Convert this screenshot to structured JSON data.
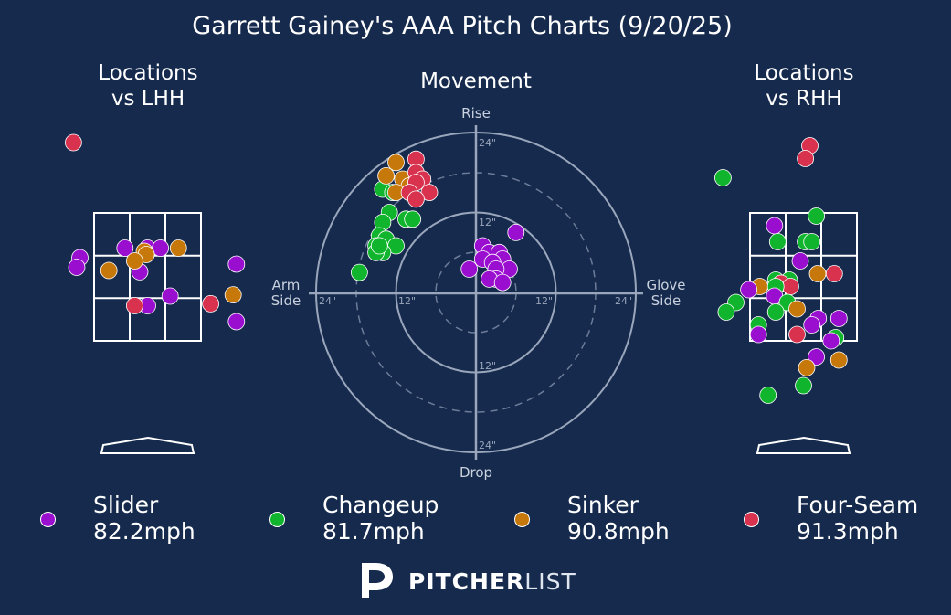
{
  "chart_data": {
    "type": "scatter",
    "title": "Garrett Gainey's AAA Pitch Charts (9/20/25)",
    "pitch_types": [
      {
        "key": "slider",
        "name": "Slider",
        "velocity": "82.2mph",
        "color": "#9a0fcf"
      },
      {
        "key": "changeup",
        "name": "Changeup",
        "velocity": "81.7mph",
        "color": "#10b52d"
      },
      {
        "key": "sinker",
        "name": "Sinker",
        "velocity": "90.8mph",
        "color": "#c7780a"
      },
      {
        "key": "fourseam",
        "name": "Four-Seam",
        "velocity": "91.3mph",
        "color": "#d8324f"
      }
    ],
    "panels": {
      "lhh": {
        "title_line1": "Locations",
        "title_line2": "vs LHH",
        "points": [
          {
            "x": -1.15,
            "y": 4.6,
            "pitch": "fourseam"
          },
          {
            "x": -0.35,
            "y": 2.95,
            "pitch": "slider"
          },
          {
            "x": -1.05,
            "y": 2.8,
            "pitch": "slider"
          },
          {
            "x": -1.1,
            "y": 2.65,
            "pitch": "slider"
          },
          {
            "x": 0.0,
            "y": 2.95,
            "pitch": "slider"
          },
          {
            "x": 0.2,
            "y": 2.95,
            "pitch": "slider"
          },
          {
            "x": 1.38,
            "y": 2.7,
            "pitch": "slider"
          },
          {
            "x": -0.12,
            "y": 2.58,
            "pitch": "slider"
          },
          {
            "x": 0.35,
            "y": 2.2,
            "pitch": "slider"
          },
          {
            "x": 0.0,
            "y": 2.05,
            "pitch": "slider"
          },
          {
            "x": 1.38,
            "y": 1.8,
            "pitch": "slider"
          },
          {
            "x": -0.05,
            "y": 2.9,
            "pitch": "sinker"
          },
          {
            "x": -0.02,
            "y": 2.85,
            "pitch": "sinker"
          },
          {
            "x": 0.48,
            "y": 2.95,
            "pitch": "sinker"
          },
          {
            "x": -0.2,
            "y": 2.75,
            "pitch": "sinker"
          },
          {
            "x": -0.6,
            "y": 2.6,
            "pitch": "sinker"
          },
          {
            "x": 1.33,
            "y": 2.22,
            "pitch": "sinker"
          },
          {
            "x": -0.2,
            "y": 2.05,
            "pitch": "fourseam"
          },
          {
            "x": 0.98,
            "y": 2.08,
            "pitch": "fourseam"
          }
        ]
      },
      "movement": {
        "title": "Movement",
        "axis_top": "Rise",
        "axis_bottom": "Drop",
        "axis_left_line1": "Arm",
        "axis_left_line2": "Side",
        "axis_right_line1": "Glove",
        "axis_right_line2": "Side",
        "ring_labels": [
          "12\"",
          "24\""
        ],
        "points": [
          {
            "x": 6,
            "y": 9,
            "pitch": "slider"
          },
          {
            "x": 1,
            "y": 7,
            "pitch": "slider"
          },
          {
            "x": 2,
            "y": 6,
            "pitch": "slider"
          },
          {
            "x": 3.5,
            "y": 6,
            "pitch": "slider"
          },
          {
            "x": 4,
            "y": 5,
            "pitch": "slider"
          },
          {
            "x": 1,
            "y": 5,
            "pitch": "slider"
          },
          {
            "x": 2.5,
            "y": 4.5,
            "pitch": "slider"
          },
          {
            "x": 5,
            "y": 3.5,
            "pitch": "slider"
          },
          {
            "x": 3,
            "y": 3.5,
            "pitch": "slider"
          },
          {
            "x": -1,
            "y": 3.5,
            "pitch": "slider"
          },
          {
            "x": 3,
            "y": 2,
            "pitch": "slider"
          },
          {
            "x": 2,
            "y": 2,
            "pitch": "slider"
          },
          {
            "x": 4,
            "y": 1.5,
            "pitch": "slider"
          },
          {
            "x": -17.5,
            "y": 3,
            "pitch": "changeup"
          },
          {
            "x": -14,
            "y": 15.5,
            "pitch": "changeup"
          },
          {
            "x": -12.5,
            "y": 15,
            "pitch": "changeup"
          },
          {
            "x": -13,
            "y": 12,
            "pitch": "changeup"
          },
          {
            "x": -10.5,
            "y": 11,
            "pitch": "changeup"
          },
          {
            "x": -9.5,
            "y": 11,
            "pitch": "changeup"
          },
          {
            "x": -14,
            "y": 10.5,
            "pitch": "changeup"
          },
          {
            "x": -14.5,
            "y": 8.5,
            "pitch": "changeup"
          },
          {
            "x": -13.5,
            "y": 8,
            "pitch": "changeup"
          },
          {
            "x": -12,
            "y": 7,
            "pitch": "changeup"
          },
          {
            "x": -15,
            "y": 7,
            "pitch": "changeup"
          },
          {
            "x": -14,
            "y": 6,
            "pitch": "changeup"
          },
          {
            "x": -15,
            "y": 6,
            "pitch": "changeup"
          },
          {
            "x": -14.5,
            "y": 7,
            "pitch": "changeup"
          },
          {
            "x": -12,
            "y": 19.5,
            "pitch": "sinker"
          },
          {
            "x": -13.5,
            "y": 17.5,
            "pitch": "sinker"
          },
          {
            "x": -11,
            "y": 17,
            "pitch": "sinker"
          },
          {
            "x": -10,
            "y": 16,
            "pitch": "sinker"
          },
          {
            "x": -12,
            "y": 15,
            "pitch": "sinker"
          },
          {
            "x": -9,
            "y": 20,
            "pitch": "fourseam"
          },
          {
            "x": -9,
            "y": 18,
            "pitch": "fourseam"
          },
          {
            "x": -8,
            "y": 17,
            "pitch": "fourseam"
          },
          {
            "x": -9,
            "y": 16.5,
            "pitch": "fourseam"
          },
          {
            "x": -7,
            "y": 15,
            "pitch": "fourseam"
          },
          {
            "x": -10,
            "y": 15,
            "pitch": "fourseam"
          },
          {
            "x": -9,
            "y": 14,
            "pitch": "fourseam"
          }
        ]
      },
      "rhh": {
        "title_line1": "Locations",
        "title_line2": "vs RHH",
        "points": [
          {
            "x": 0.1,
            "y": 4.55,
            "pitch": "fourseam"
          },
          {
            "x": 0.03,
            "y": 4.35,
            "pitch": "fourseam"
          },
          {
            "x": -1.25,
            "y": 4.05,
            "pitch": "changeup"
          },
          {
            "x": 0.2,
            "y": 3.45,
            "pitch": "changeup"
          },
          {
            "x": -0.45,
            "y": 3.3,
            "pitch": "slider"
          },
          {
            "x": 0.03,
            "y": 3.05,
            "pitch": "changeup"
          },
          {
            "x": 0.13,
            "y": 3.05,
            "pitch": "changeup"
          },
          {
            "x": -0.4,
            "y": 3.05,
            "pitch": "changeup"
          },
          {
            "x": -0.05,
            "y": 2.75,
            "pitch": "slider"
          },
          {
            "x": 0.22,
            "y": 2.55,
            "pitch": "sinker"
          },
          {
            "x": 0.48,
            "y": 2.55,
            "pitch": "fourseam"
          },
          {
            "x": -0.43,
            "y": 2.45,
            "pitch": "changeup"
          },
          {
            "x": -0.22,
            "y": 2.45,
            "pitch": "changeup"
          },
          {
            "x": -0.35,
            "y": 2.4,
            "pitch": "fourseam"
          },
          {
            "x": -0.2,
            "y": 2.35,
            "pitch": "fourseam"
          },
          {
            "x": -0.68,
            "y": 2.35,
            "pitch": "sinker"
          },
          {
            "x": -0.85,
            "y": 2.3,
            "pitch": "slider"
          },
          {
            "x": -0.43,
            "y": 2.35,
            "pitch": "changeup"
          },
          {
            "x": -0.45,
            "y": 2.2,
            "pitch": "slider"
          },
          {
            "x": -1.05,
            "y": 2.1,
            "pitch": "changeup"
          },
          {
            "x": -1.2,
            "y": 1.95,
            "pitch": "changeup"
          },
          {
            "x": -0.25,
            "y": 2.1,
            "pitch": "changeup"
          },
          {
            "x": -0.1,
            "y": 2.0,
            "pitch": "sinker"
          },
          {
            "x": -0.43,
            "y": 1.95,
            "pitch": "changeup"
          },
          {
            "x": 0.23,
            "y": 1.85,
            "pitch": "slider"
          },
          {
            "x": 0.55,
            "y": 1.85,
            "pitch": "slider"
          },
          {
            "x": 0.13,
            "y": 1.75,
            "pitch": "slider"
          },
          {
            "x": -0.7,
            "y": 1.75,
            "pitch": "changeup"
          },
          {
            "x": 0.5,
            "y": 1.55,
            "pitch": "changeup"
          },
          {
            "x": -0.7,
            "y": 1.6,
            "pitch": "slider"
          },
          {
            "x": -0.1,
            "y": 1.6,
            "pitch": "fourseam"
          },
          {
            "x": 0.43,
            "y": 1.5,
            "pitch": "slider"
          },
          {
            "x": 0.2,
            "y": 1.25,
            "pitch": "slider"
          },
          {
            "x": 0.55,
            "y": 1.2,
            "pitch": "sinker"
          },
          {
            "x": 0.05,
            "y": 1.08,
            "pitch": "sinker"
          },
          {
            "x": 0.0,
            "y": 0.8,
            "pitch": "changeup"
          },
          {
            "x": -0.55,
            "y": 0.65,
            "pitch": "changeup"
          }
        ]
      }
    }
  },
  "brand": {
    "bold": "PITCHER",
    "light": "LIST"
  },
  "colors": {
    "background": "#152a4d",
    "grid": "#ffffff",
    "ring": "#9aa6bb",
    "axis_text": "#c9d1de"
  }
}
